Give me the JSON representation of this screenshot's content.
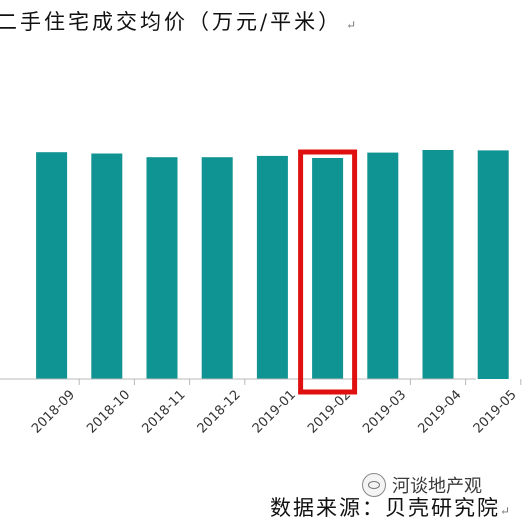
{
  "header": {
    "title": "二手住宅成交均价（万元/平米）",
    "paragraph_mark": "↵"
  },
  "footer": {
    "watermark": "河谈地产观",
    "source": "数据来源：贝壳研究院",
    "paragraph_mark": "↵"
  },
  "colors": {
    "bar": "#0f9393",
    "highlight": "#e01010",
    "axis": "#b8b8b8"
  },
  "chart_data": {
    "type": "bar",
    "title": "二手住宅成交均价（万元/平米）",
    "categories": [
      "2018-09",
      "2018-10",
      "2018-11",
      "2018-12",
      "2019-01",
      "2019-02",
      "2019-03",
      "2019-04",
      "2019-05"
    ],
    "values": [
      1.045,
      1.039,
      1.022,
      1.022,
      1.028,
      1.018,
      1.043,
      1.055,
      1.053
    ],
    "highlight_category": "2019-02",
    "grid": false,
    "legend": "none"
  }
}
